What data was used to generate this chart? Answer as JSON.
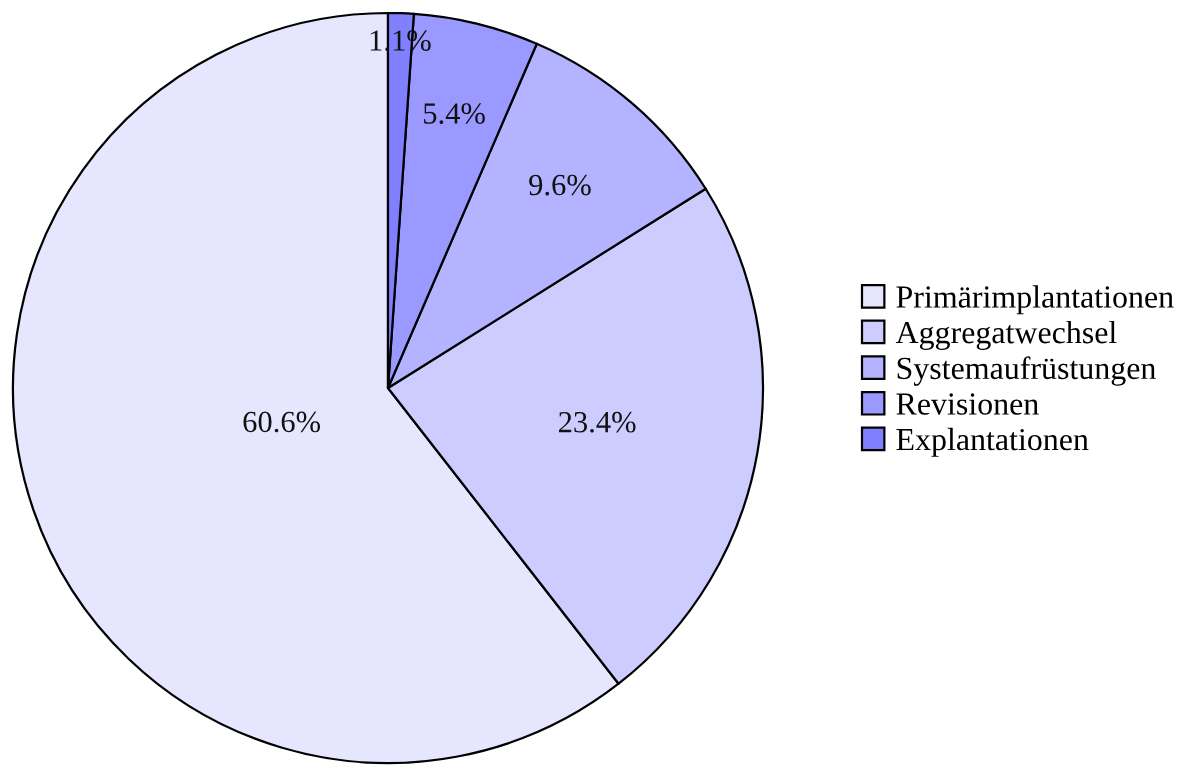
{
  "chart_data": {
    "type": "pie",
    "categories": [
      "Primärimplantationen",
      "Aggregatwechsel",
      "Systemaufrüstungen",
      "Revisionen",
      "Explantationen"
    ],
    "values": [
      60.6,
      23.4,
      9.6,
      5.4,
      1.1
    ],
    "colors": [
      "#e6e6ff",
      "#ccccff",
      "#b3b3ff",
      "#9999ff",
      "#8080ff"
    ],
    "value_labels": [
      "60.6%",
      "23.4%",
      "9.6%",
      "5.4%",
      "1.1%"
    ],
    "legend": "right"
  }
}
